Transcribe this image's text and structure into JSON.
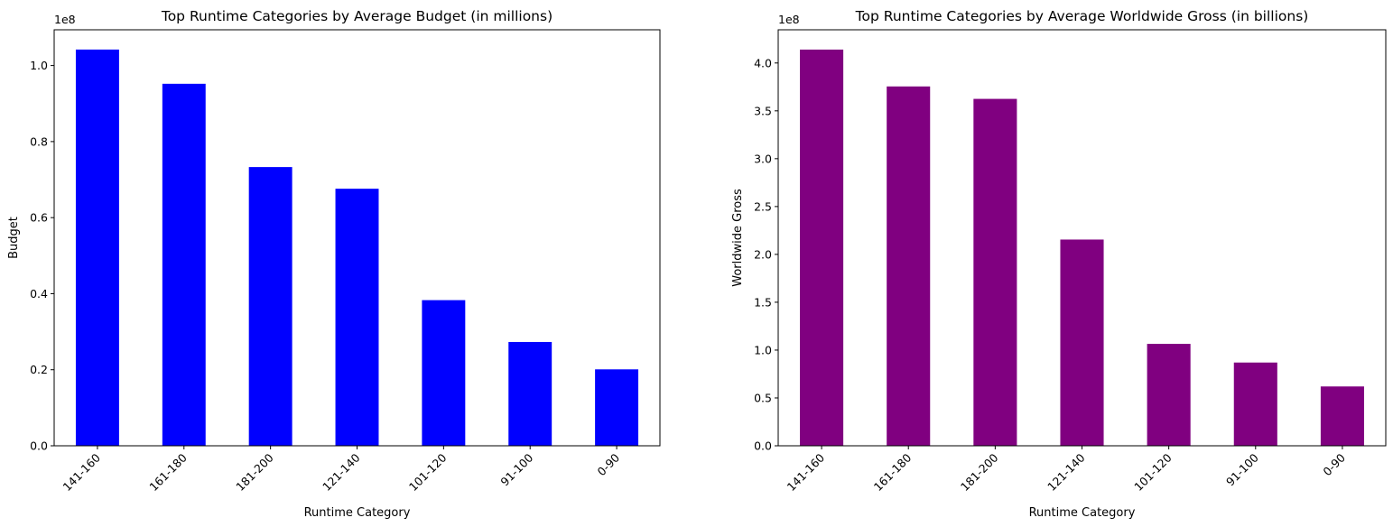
{
  "chart_data": [
    {
      "type": "bar",
      "title": "Top  Runtime Categories by Average Budget (in millions)",
      "xlabel": "Runtime Category",
      "ylabel": "Budget",
      "offset_label": "1e8",
      "categories": [
        "141-160",
        "161-180",
        "181-200",
        "121-140",
        "101-120",
        "91-100",
        "0-90"
      ],
      "values": [
        104200000,
        95200000,
        73300000,
        67600000,
        38300000,
        27300000,
        20100000
      ],
      "ylim": [
        0,
        109400000
      ],
      "yticks": [
        0,
        20000000.0,
        40000000.0,
        60000000.0,
        80000000.0,
        100000000.0
      ],
      "ytick_labels": [
        "0.0",
        "0.2",
        "0.4",
        "0.6",
        "0.8",
        "1.0"
      ],
      "color": "#0000ff",
      "grid": false
    },
    {
      "type": "bar",
      "title": "Top  Runtime Categories by Average Worldwide Gross (in billions)",
      "xlabel": "Runtime Category",
      "ylabel": "Worldwide Gross",
      "offset_label": "1e8",
      "categories": [
        "141-160",
        "161-180",
        "181-200",
        "121-140",
        "101-120",
        "91-100",
        "0-90"
      ],
      "values": [
        414000000,
        375500000,
        362500000,
        215500000,
        106500000,
        87000000,
        62000000
      ],
      "ylim": [
        0,
        434700000
      ],
      "yticks": [
        0,
        50000000.0,
        100000000.0,
        150000000.0,
        200000000.0,
        250000000.0,
        300000000.0,
        350000000.0,
        400000000.0
      ],
      "ytick_labels": [
        "0.0",
        "0.5",
        "1.0",
        "1.5",
        "2.0",
        "2.5",
        "3.0",
        "3.5",
        "4.0"
      ],
      "color": "#800080",
      "grid": false
    }
  ]
}
